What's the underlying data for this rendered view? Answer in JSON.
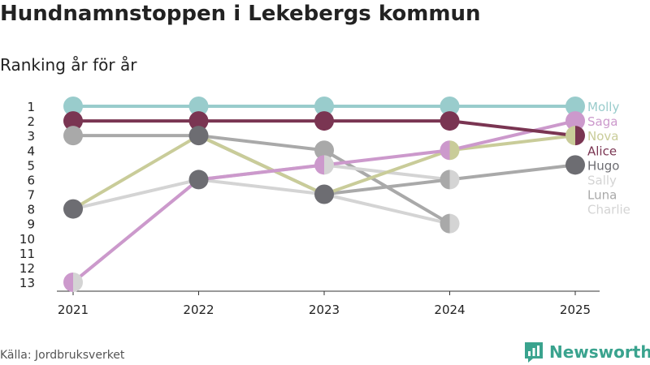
{
  "title": "Hundnamnstoppen i Lekebergs kommun",
  "subtitle": "Ranking år för år",
  "source": "Källa: Jordbruksverket",
  "brand": {
    "name": "Newsworthy",
    "color": "#3aa38e",
    "icon": "bar-chart-icon"
  },
  "chart_data": {
    "type": "line",
    "x": [
      "2021",
      "2022",
      "2023",
      "2024",
      "2025"
    ],
    "y_ticks": [
      "1",
      "2",
      "3",
      "4",
      "5",
      "6",
      "7",
      "8",
      "9",
      "10",
      "11",
      "12",
      "13"
    ],
    "ylim": [
      13,
      1
    ],
    "y_inverted": true,
    "grid": false,
    "legend": "right-end labels",
    "series": [
      {
        "name": "Charlie",
        "color": "#d4d4d4",
        "values": [
          8,
          6,
          7,
          9,
          null
        ]
      },
      {
        "name": "Luna",
        "color": "#a9a9a9",
        "values": [
          3,
          3,
          4,
          9,
          null
        ]
      },
      {
        "name": "Sally",
        "color": "#d4d4d4",
        "values": [
          13,
          6,
          5,
          6,
          null
        ]
      },
      {
        "name": "Hugo",
        "color": "#a9a9a9",
        "values": [
          null,
          3,
          7,
          6,
          5
        ]
      },
      {
        "name": "Nova",
        "color": "#c9cc99",
        "values": [
          8,
          3,
          7,
          4,
          3
        ]
      },
      {
        "name": "Saga",
        "color": "#cc99cc",
        "values": [
          13,
          6,
          5,
          4,
          2
        ]
      },
      {
        "name": "Alice",
        "color": "#7a3552",
        "values": [
          2,
          2,
          2,
          2,
          3
        ]
      },
      {
        "name": "Molly",
        "color": "#99cccc",
        "values": [
          1,
          1,
          1,
          1,
          1
        ]
      }
    ],
    "legend_order": [
      "Molly",
      "Saga",
      "Nova",
      "Alice",
      "Hugo",
      "Sally",
      "Luna",
      "Charlie"
    ],
    "label_colors": {
      "Molly": "#99cccc",
      "Saga": "#cc99cc",
      "Nova": "#c9cc99",
      "Alice": "#7a3552",
      "Hugo": "#6d6d72",
      "Sally": "#d4d4d4",
      "Luna": "#a9a9a9",
      "Charlie": "#d4d4d4"
    },
    "markers": [
      {
        "x": "2021",
        "y": 1,
        "colors": [
          "#99cccc"
        ]
      },
      {
        "x": "2021",
        "y": 2,
        "colors": [
          "#7a3552"
        ]
      },
      {
        "x": "2021",
        "y": 3,
        "colors": [
          "#a9a9a9"
        ]
      },
      {
        "x": "2021",
        "y": 8,
        "colors": [
          "#6d6d72"
        ]
      },
      {
        "x": "2021",
        "y": 13,
        "colors": [
          "#cc99cc",
          "#d4d4d4"
        ]
      },
      {
        "x": "2022",
        "y": 1,
        "colors": [
          "#99cccc"
        ]
      },
      {
        "x": "2022",
        "y": 2,
        "colors": [
          "#7a3552"
        ]
      },
      {
        "x": "2022",
        "y": 3,
        "colors": [
          "#6d6d72"
        ]
      },
      {
        "x": "2022",
        "y": 6,
        "colors": [
          "#6d6d72"
        ]
      },
      {
        "x": "2023",
        "y": 1,
        "colors": [
          "#99cccc"
        ]
      },
      {
        "x": "2023",
        "y": 2,
        "colors": [
          "#7a3552"
        ]
      },
      {
        "x": "2023",
        "y": 4,
        "colors": [
          "#a9a9a9"
        ]
      },
      {
        "x": "2023",
        "y": 5,
        "colors": [
          "#cc99cc",
          "#d4d4d4"
        ]
      },
      {
        "x": "2023",
        "y": 7,
        "colors": [
          "#6d6d72"
        ]
      },
      {
        "x": "2024",
        "y": 1,
        "colors": [
          "#99cccc"
        ]
      },
      {
        "x": "2024",
        "y": 2,
        "colors": [
          "#7a3552"
        ]
      },
      {
        "x": "2024",
        "y": 4,
        "colors": [
          "#cc99cc",
          "#c9cc99"
        ]
      },
      {
        "x": "2024",
        "y": 6,
        "colors": [
          "#a9a9a9",
          "#d4d4d4"
        ]
      },
      {
        "x": "2024",
        "y": 9,
        "colors": [
          "#a9a9a9",
          "#d4d4d4"
        ]
      },
      {
        "x": "2025",
        "y": 1,
        "colors": [
          "#99cccc"
        ]
      },
      {
        "x": "2025",
        "y": 2,
        "colors": [
          "#cc99cc"
        ]
      },
      {
        "x": "2025",
        "y": 3,
        "colors": [
          "#c9cc99",
          "#7a3552"
        ]
      },
      {
        "x": "2025",
        "y": 5,
        "colors": [
          "#6d6d72"
        ]
      }
    ]
  }
}
